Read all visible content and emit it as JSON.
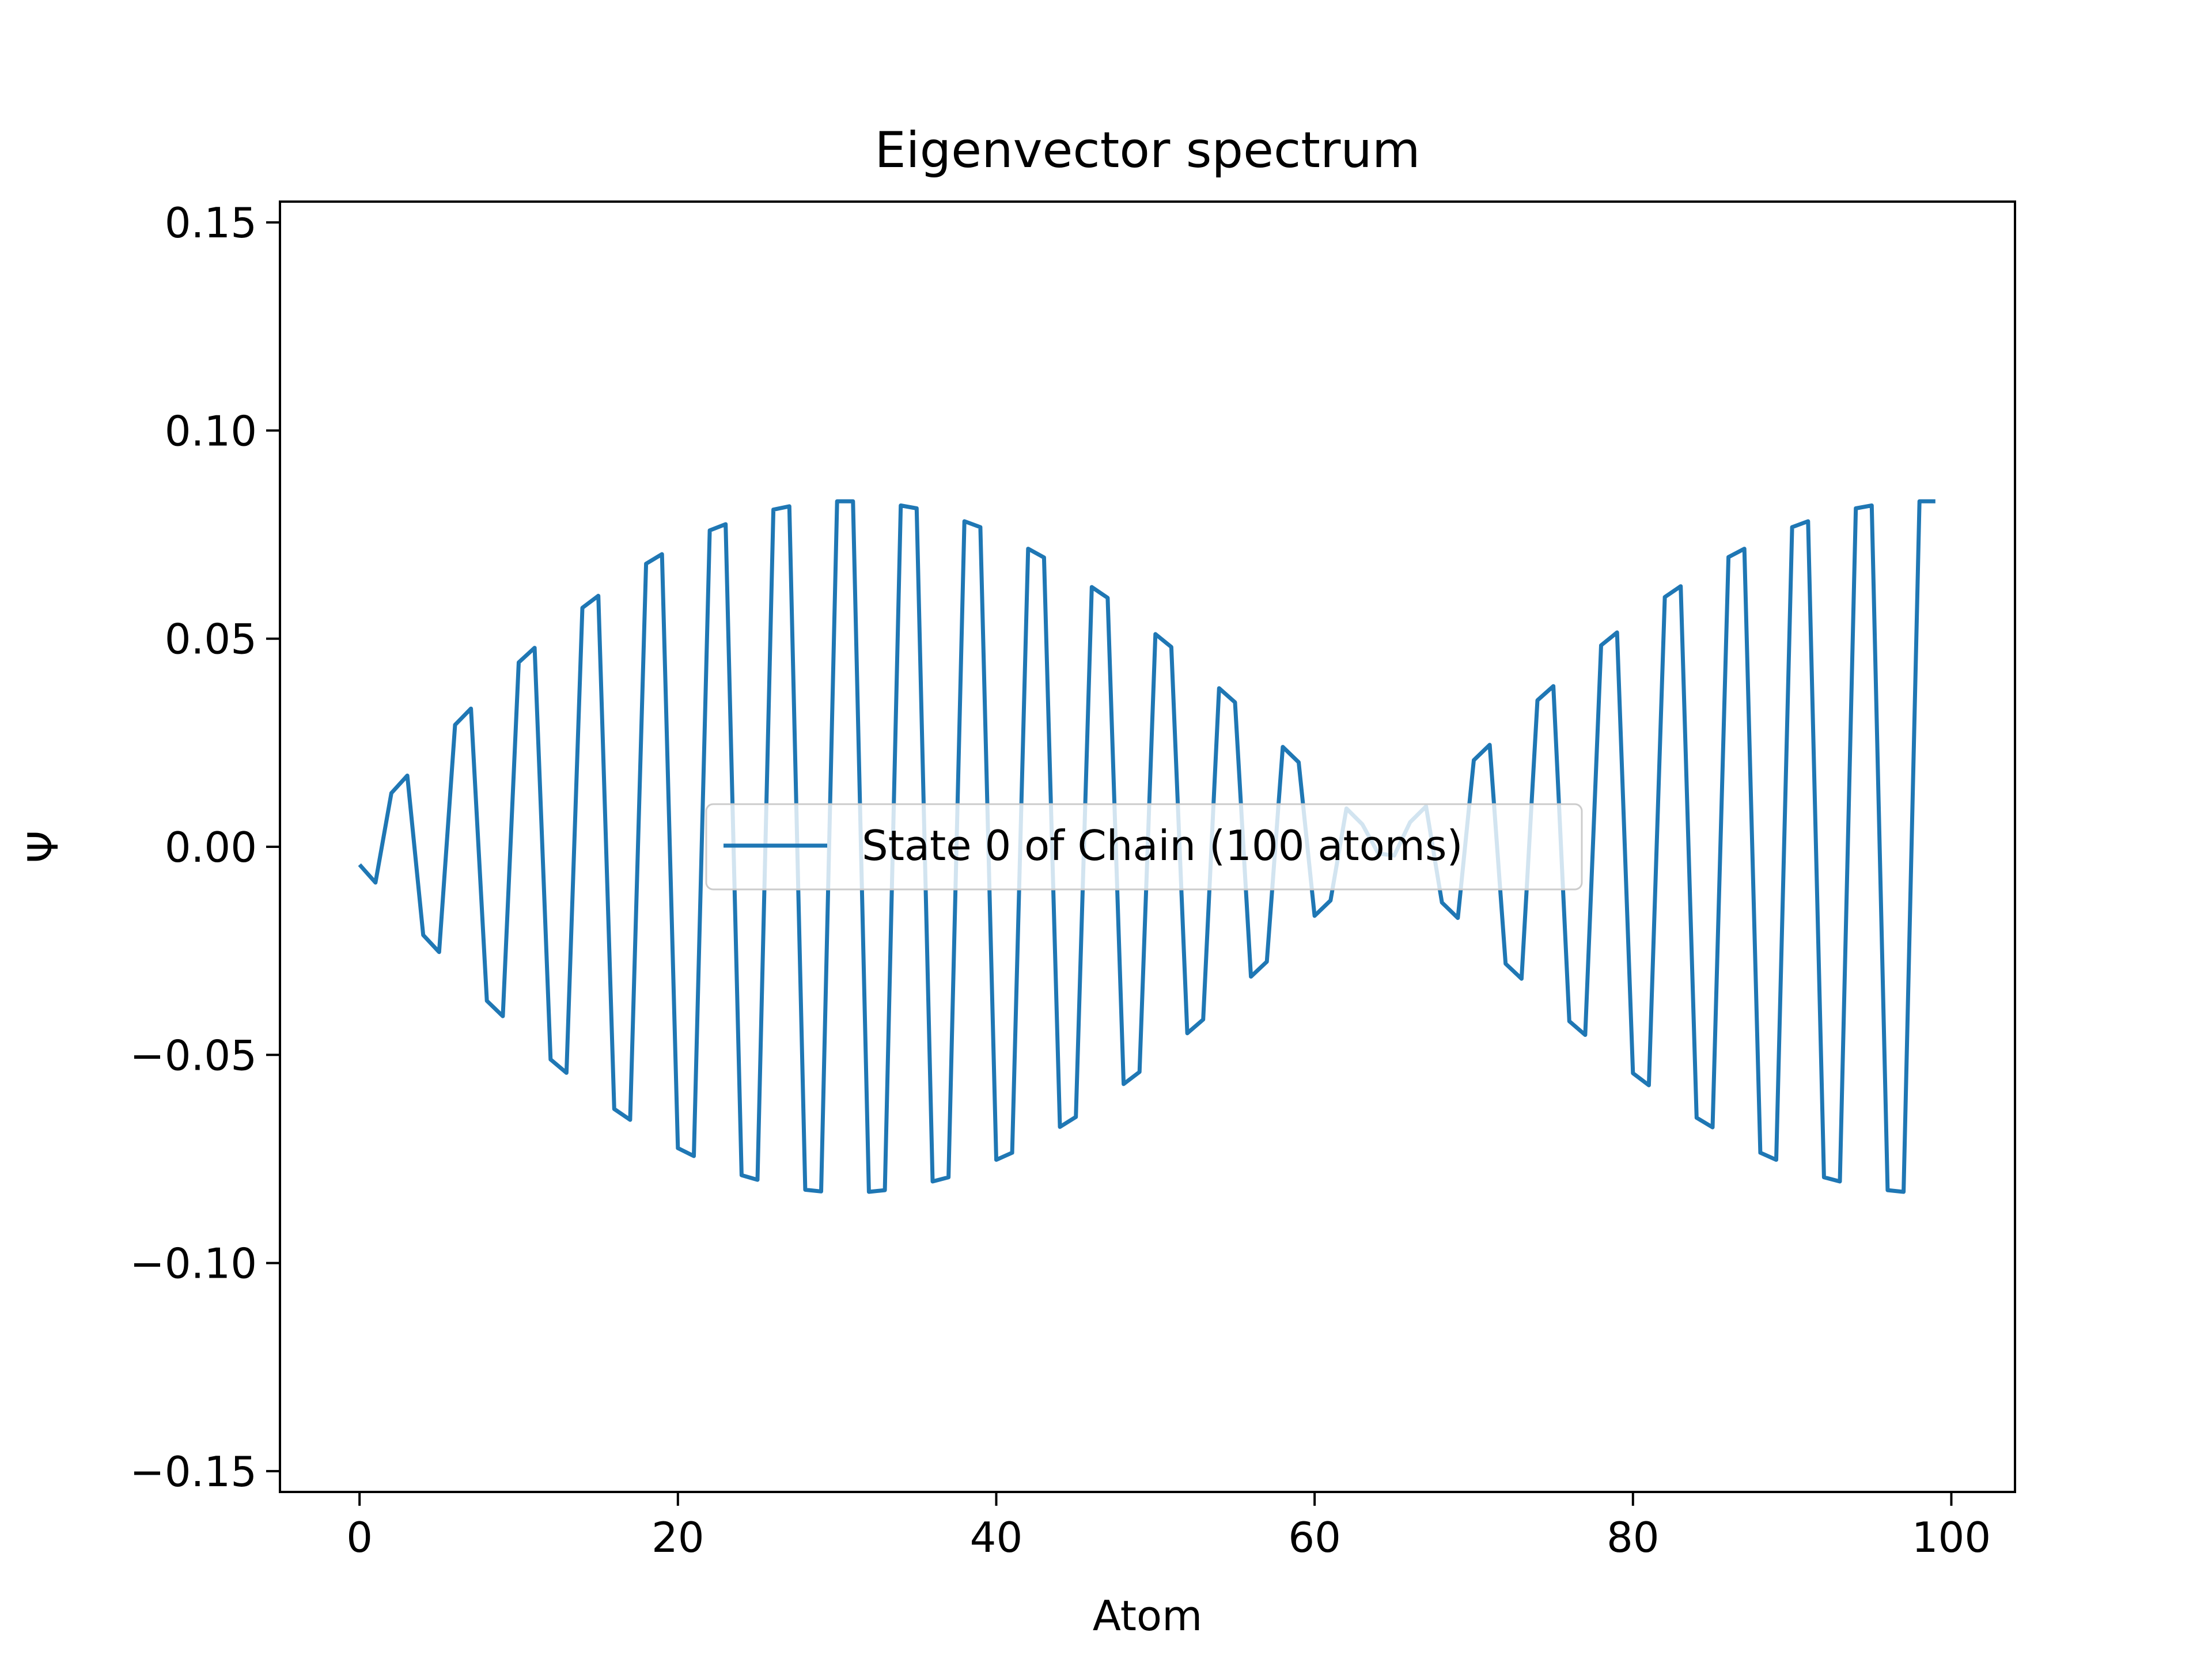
{
  "chart_data": {
    "type": "line",
    "title": "Eigenvector spectrum",
    "xlabel": "Atom",
    "ylabel": "Ψ",
    "xlim": [
      -5,
      104
    ],
    "ylim": [
      -0.155,
      0.155
    ],
    "xticks": [
      0,
      20,
      40,
      60,
      80,
      100
    ],
    "xtick_labels": [
      "0",
      "20",
      "40",
      "60",
      "80",
      "100"
    ],
    "yticks": [
      -0.15,
      -0.1,
      -0.05,
      0.0,
      0.05,
      0.1,
      0.15
    ],
    "ytick_labels": [
      "−0.15",
      "−0.10",
      "−0.05",
      "0.00",
      "0.05",
      "0.10",
      "0.15"
    ],
    "grid": false,
    "legend_position": "center",
    "series": [
      {
        "name": "State 0 of Chain (100 atoms)",
        "color": "#1f77b4",
        "x": [
          0,
          1,
          2,
          3,
          4,
          5,
          6,
          7,
          8,
          9,
          10,
          11,
          12,
          13,
          14,
          15,
          16,
          17,
          18,
          19,
          20,
          21,
          22,
          23,
          24,
          25,
          26,
          27,
          28,
          29,
          30,
          31,
          32,
          33,
          34,
          35,
          36,
          37,
          38,
          39,
          40,
          41,
          42,
          43,
          44,
          45,
          46,
          47,
          48,
          49,
          50,
          51,
          52,
          53,
          54,
          55,
          56,
          57,
          58,
          59,
          60,
          61,
          62,
          63,
          64,
          65,
          66,
          67,
          68,
          69,
          70,
          71,
          72,
          73,
          74,
          75,
          76,
          77,
          78,
          79,
          80,
          81,
          82,
          83,
          84,
          85,
          86,
          87,
          88,
          89,
          90,
          91,
          92,
          93,
          94,
          95,
          96,
          97,
          98,
          99
        ],
        "values": [
          -0.0043,
          -0.0086,
          0.0129,
          0.0171,
          -0.0212,
          -0.0253,
          0.0293,
          0.0332,
          -0.037,
          -0.0407,
          0.0443,
          0.0478,
          -0.0511,
          -0.0543,
          0.0574,
          0.0603,
          -0.063,
          -0.0656,
          0.068,
          0.0703,
          -0.0724,
          -0.0743,
          0.076,
          0.0775,
          -0.0789,
          -0.08,
          0.081,
          0.0818,
          -0.0824,
          -0.0828,
          0.083,
          0.083,
          -0.0829,
          -0.0825,
          0.082,
          0.0813,
          -0.0804,
          -0.0794,
          0.0782,
          0.0768,
          -0.0752,
          -0.0735,
          0.0716,
          0.0695,
          -0.0673,
          -0.0649,
          0.0624,
          0.0598,
          -0.057,
          -0.0541,
          0.0511,
          0.048,
          -0.0448,
          -0.0415,
          0.0381,
          0.0347,
          -0.0312,
          -0.0276,
          0.024,
          0.0203,
          -0.0166,
          -0.0129,
          0.0092,
          0.0054,
          -0.0016,
          -0.0021,
          0.0059,
          0.0097,
          -0.0134,
          -0.0171,
          0.0208,
          0.0245,
          -0.0281,
          -0.0317,
          0.0352,
          0.0386,
          -0.0419,
          -0.0452,
          0.0484,
          0.0515,
          -0.0544,
          -0.0573,
          0.06,
          0.0626,
          -0.0651,
          -0.0674,
          0.0696,
          0.0716,
          -0.0735,
          -0.0752,
          0.0768,
          0.0782,
          -0.0794,
          -0.0804,
          0.0813,
          0.082,
          -0.0825,
          -0.0829,
          0.083,
          0.083
        ]
      }
    ]
  }
}
